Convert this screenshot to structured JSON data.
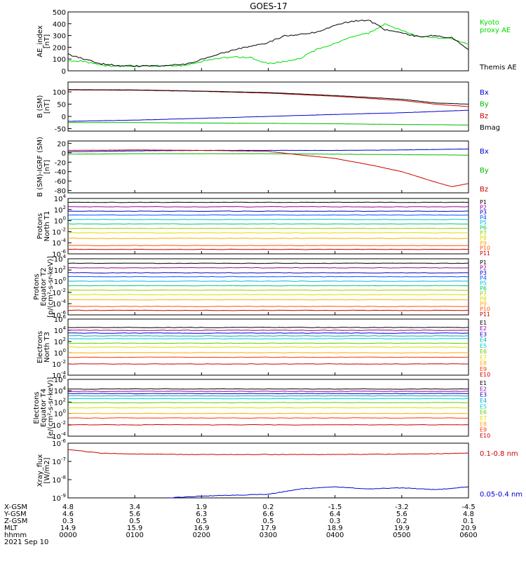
{
  "title": "GOES-17",
  "date_label": "2021 Sep 10",
  "chart_data": [
    {
      "type": "line",
      "ylabel": "AE_index\n[nT]",
      "ylim": [
        0,
        500
      ],
      "yticks": [
        "0",
        "100",
        "200",
        "300",
        "400",
        "500"
      ],
      "legend_placement": "right",
      "series": [
        {
          "name": "Kyoto\nproxy AE",
          "color": "#00dd00",
          "x": [
            0,
            15,
            30,
            45,
            60,
            75,
            90,
            105,
            120,
            135,
            150,
            165,
            180,
            195,
            210,
            225,
            240,
            255,
            270,
            285,
            300,
            315,
            330,
            345,
            360
          ],
          "values": [
            90,
            80,
            45,
            40,
            40,
            40,
            45,
            45,
            80,
            105,
            120,
            110,
            60,
            80,
            110,
            190,
            230,
            290,
            320,
            400,
            340,
            290,
            285,
            270,
            230
          ]
        },
        {
          "name": "Themis AE",
          "color": "#000000",
          "x": [
            0,
            15,
            30,
            45,
            60,
            75,
            90,
            105,
            120,
            135,
            150,
            165,
            180,
            195,
            210,
            225,
            240,
            255,
            270,
            285,
            300,
            315,
            330,
            345,
            360
          ],
          "values": [
            140,
            100,
            60,
            45,
            40,
            40,
            45,
            55,
            95,
            140,
            180,
            210,
            240,
            300,
            310,
            330,
            390,
            420,
            430,
            350,
            320,
            290,
            300,
            280,
            180
          ]
        }
      ]
    },
    {
      "type": "line",
      "ylabel": "B (SM)\n[nT]",
      "ylim": [
        -60,
        140
      ],
      "yticks": [
        "-50",
        "0",
        "50",
        "100"
      ],
      "legend_placement": "right",
      "series": [
        {
          "name": "Bx",
          "color": "#0000cc",
          "x": [
            0,
            60,
            120,
            180,
            240,
            300,
            360
          ],
          "values": [
            -20,
            -15,
            -8,
            0,
            8,
            15,
            25
          ]
        },
        {
          "name": "By",
          "color": "#00bb00",
          "x": [
            0,
            60,
            120,
            180,
            240,
            300,
            360
          ],
          "values": [
            -25,
            -25,
            -27,
            -28,
            -30,
            -33,
            -35
          ]
        },
        {
          "name": "Bz",
          "color": "#cc0000",
          "x": [
            0,
            60,
            120,
            180,
            240,
            300,
            330,
            360
          ],
          "values": [
            108,
            107,
            102,
            95,
            82,
            65,
            50,
            40
          ]
        },
        {
          "name": "Bmag",
          "color": "#000000",
          "x": [
            0,
            60,
            120,
            180,
            240,
            300,
            330,
            360
          ],
          "values": [
            109,
            108,
            103,
            97,
            85,
            70,
            55,
            50
          ]
        }
      ]
    },
    {
      "type": "line",
      "ylabel": "B (SM)-IGRF (SM)\n[nT]",
      "ylim": [
        -85,
        25
      ],
      "yticks": [
        "-80",
        "-60",
        "-40",
        "-20",
        "0",
        "20"
      ],
      "legend_placement": "right",
      "series": [
        {
          "name": "Bx",
          "color": "#0000cc",
          "x": [
            0,
            60,
            120,
            180,
            240,
            300,
            360
          ],
          "values": [
            2,
            4,
            5,
            5,
            5,
            6,
            8
          ]
        },
        {
          "name": "By",
          "color": "#00bb00",
          "x": [
            0,
            60,
            120,
            180,
            240,
            300,
            360
          ],
          "values": [
            -3,
            -2,
            -2,
            -2,
            -3,
            -4,
            -5
          ]
        },
        {
          "name": "Bz",
          "color": "#cc0000",
          "x": [
            0,
            60,
            120,
            180,
            210,
            240,
            270,
            300,
            330,
            345,
            360
          ],
          "values": [
            5,
            6,
            5,
            3,
            -5,
            -12,
            -25,
            -40,
            -62,
            -72,
            -65
          ]
        }
      ]
    },
    {
      "type": "line",
      "ylabel": "Protons\nNorth T1",
      "ylog_range": [
        -6,
        4
      ],
      "yticks": [
        "10^4",
        "10^2",
        "10^0",
        "10^-2",
        "10^-4",
        "10^-6"
      ],
      "series": [
        {
          "name": "P1",
          "color": "#000000",
          "log10": 3.3
        },
        {
          "name": "P2",
          "color": "#990099",
          "log10": 2.5
        },
        {
          "name": "P3",
          "color": "#0000cc",
          "log10": 1.7
        },
        {
          "name": "P4",
          "color": "#0055ff",
          "log10": 1.0
        },
        {
          "name": "P5",
          "color": "#00bbdd",
          "log10": 0.2
        },
        {
          "name": "P6",
          "color": "#00cc66",
          "log10": -0.6
        },
        {
          "name": "P7",
          "color": "#99cc00",
          "log10": -1.4
        },
        {
          "name": "P8",
          "color": "#dddd00",
          "log10": -2.2
        },
        {
          "name": "P9",
          "color": "#ffaa00",
          "log10": -3.2
        },
        {
          "name": "P10",
          "color": "#ff5500",
          "log10": -4.5
        },
        {
          "name": "P11",
          "color": "#cc0000",
          "log10": -5.2
        }
      ]
    },
    {
      "type": "line",
      "ylabel": "Protons\nEquator T2\n[p/(cm²-s-sr-keV)]",
      "ylog_range": [
        -6,
        4
      ],
      "yticks": [
        "10^4",
        "10^2",
        "10^0",
        "10^-2",
        "10^-4",
        "10^-6"
      ],
      "series": [
        {
          "name": "P1",
          "color": "#000000",
          "log10": 3.2
        },
        {
          "name": "P2",
          "color": "#990099",
          "log10": 2.4
        },
        {
          "name": "P3",
          "color": "#0000cc",
          "log10": 1.5
        },
        {
          "name": "P4",
          "color": "#0055ff",
          "log10": 0.8
        },
        {
          "name": "P5",
          "color": "#00bbdd",
          "log10": 0.0
        },
        {
          "name": "P6",
          "color": "#00cc66",
          "log10": -0.8
        },
        {
          "name": "P7",
          "color": "#99cc00",
          "log10": -1.6
        },
        {
          "name": "P8",
          "color": "#dddd00",
          "log10": -2.4
        },
        {
          "name": "P9",
          "color": "#ffaa00",
          "log10": -3.3
        },
        {
          "name": "P10",
          "color": "#ff5500",
          "log10": -4.5
        },
        {
          "name": "P11",
          "color": "#cc0000",
          "log10": -5.2
        }
      ]
    },
    {
      "type": "line",
      "ylabel": "Electrons\nNorth T3",
      "ylog_range": [
        -4,
        6
      ],
      "yticks": [
        "10^6",
        "10^4",
        "10^2",
        "10^0",
        "10^-2",
        "10^-4"
      ],
      "series": [
        {
          "name": "E1",
          "color": "#000000",
          "log10": 4.5
        },
        {
          "name": "E2",
          "color": "#990099",
          "log10": 4.0
        },
        {
          "name": "E3",
          "color": "#0000cc",
          "log10": 3.5
        },
        {
          "name": "E4",
          "color": "#00aacc",
          "log10": 3.0
        },
        {
          "name": "E5",
          "color": "#00cccc",
          "log10": 2.5
        },
        {
          "name": "E6",
          "color": "#66cc00",
          "log10": 1.7
        },
        {
          "name": "E7",
          "color": "#dddd00",
          "log10": 1.0
        },
        {
          "name": "E8",
          "color": "#ffaa00",
          "log10": 0.0
        },
        {
          "name": "E9",
          "color": "#ff3300",
          "log10": -0.8
        },
        {
          "name": "E10",
          "color": "#cc0000",
          "log10": -2.0
        }
      ]
    },
    {
      "type": "line",
      "ylabel": "Electrons\nEquator T4\n[e/(cm²-s-sr-keV)]",
      "ylog_range": [
        -4,
        6
      ],
      "yticks": [
        "10^6",
        "10^4",
        "10^2",
        "10^0",
        "10^-2",
        "10^-4"
      ],
      "series": [
        {
          "name": "E1",
          "color": "#000000",
          "log10": 4.3
        },
        {
          "name": "E2",
          "color": "#990099",
          "log10": 3.9
        },
        {
          "name": "E3",
          "color": "#0000cc",
          "log10": 3.5
        },
        {
          "name": "E4",
          "color": "#00aacc",
          "log10": 3.1
        },
        {
          "name": "E5",
          "color": "#00cccc",
          "log10": 2.6
        },
        {
          "name": "E6",
          "color": "#66cc00",
          "log10": 1.9
        },
        {
          "name": "E7",
          "color": "#dddd00",
          "log10": 1.0
        },
        {
          "name": "E8",
          "color": "#ffaa00",
          "log10": 0.0
        },
        {
          "name": "E9",
          "color": "#ff3300",
          "log10": -0.8
        },
        {
          "name": "E10",
          "color": "#cc0000",
          "log10": -2.0
        }
      ]
    },
    {
      "type": "line",
      "ylabel": "Xray_flux\n[W/m2]",
      "ylog_range": [
        -9,
        -6
      ],
      "yticks": [
        "10^-6",
        "10^-7",
        "10^-8",
        "10^-9"
      ],
      "legend_placement": "right",
      "series": [
        {
          "name": "0.1-0.8 nm",
          "color": "#cc0000",
          "x": [
            0,
            30,
            60,
            120,
            180,
            240,
            300,
            360
          ],
          "log10": [
            -6.35,
            -6.55,
            -6.6,
            -6.62,
            -6.62,
            -6.62,
            -6.6,
            -6.55
          ]
        },
        {
          "name": "0.05-0.4 nm",
          "color": "#0000cc",
          "x": [
            90,
            120,
            150,
            180,
            210,
            240,
            270,
            300,
            330,
            360
          ],
          "log10": [
            -9.0,
            -8.9,
            -8.85,
            -8.8,
            -8.5,
            -8.4,
            -8.5,
            -8.45,
            -8.55,
            -8.4
          ]
        }
      ]
    }
  ],
  "x_axis": {
    "rows": [
      {
        "label": "X-GSM",
        "values": [
          "4.8",
          "3.4",
          "1.9",
          "0.2",
          "-1.5",
          "-3.2",
          "-4.5"
        ]
      },
      {
        "label": "Y-GSM",
        "values": [
          "4.6",
          "5.6",
          "6.3",
          "6.6",
          "6.4",
          "5.6",
          "4.8"
        ]
      },
      {
        "label": "Z-GSM",
        "values": [
          "0.3",
          "0.5",
          "0.5",
          "0.5",
          "0.3",
          "0.2",
          "0.1"
        ]
      },
      {
        "label": "MLT",
        "values": [
          "14.9",
          "15.9",
          "16.9",
          "17.9",
          "18.9",
          "19.9",
          "20.9"
        ]
      },
      {
        "label": "hhmm",
        "values": [
          "0000",
          "0100",
          "0200",
          "0300",
          "0400",
          "0500",
          "0600"
        ]
      }
    ]
  }
}
